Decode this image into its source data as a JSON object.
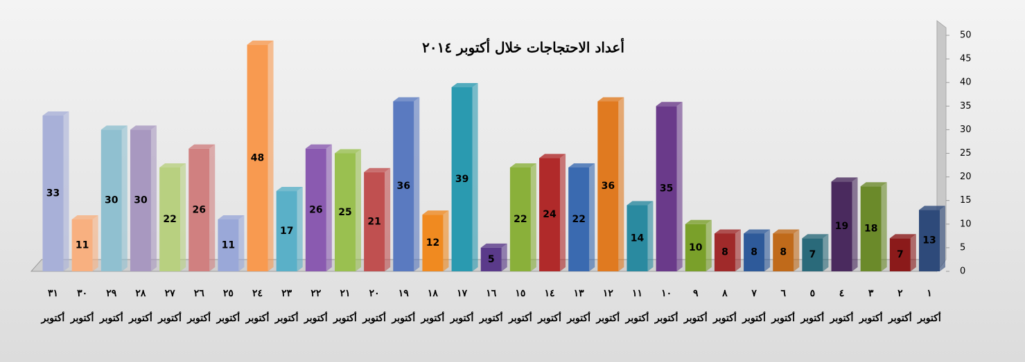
{
  "chart_data": {
    "type": "bar3d",
    "title": "أعداد الاحتجاجات خلال أكتوبر ٢٠١٤",
    "categories": [
      "١ أكتوبر",
      "٢ أكتوبر",
      "٣ أكتوبر",
      "٤ أكتوبر",
      "٥ أكتوبر",
      "٦ أكتوبر",
      "٧ أكتوبر",
      "٨ أكتوبر",
      "٩ أكتوبر",
      "١٠ أكتوبر",
      "١١ أكتوبر",
      "١٢ أكتوبر",
      "١٣ أكتوبر",
      "١٤ أكتوبر",
      "١٥ أكتوبر",
      "١٦ أكتوبر",
      "١٧ أكتوبر",
      "١٨ أكتوبر",
      "١٩ أكتوبر",
      "٢٠ أكتوبر",
      "٢١ أكتوبر",
      "٢٢ أكتوبر",
      "٢٣ أكتوبر",
      "٢٤ أكتوبر",
      "٢٥ أكتوبر",
      "٢٦ أكتوبر",
      "٢٧ أكتوبر",
      "٢٨ أكتوبر",
      "٢٩ أكتوبر",
      "٣٠ أكتوبر",
      "٣١ أكتوبر"
    ],
    "values": [
      13,
      7,
      18,
      19,
      7,
      8,
      8,
      8,
      10,
      35,
      14,
      36,
      22,
      24,
      22,
      5,
      39,
      12,
      36,
      21,
      25,
      26,
      17,
      48,
      11,
      26,
      22,
      30,
      30,
      11,
      33
    ],
    "colors": [
      "#2e4a7a",
      "#8b1a1a",
      "#6b8a2a",
      "#4a2a5e",
      "#2a6a7a",
      "#c06a1a",
      "#2e5a9a",
      "#a02a2a",
      "#7aa02a",
      "#6a3a8a",
      "#2a8aa0",
      "#e07a20",
      "#3a6ab0",
      "#b02a2a",
      "#8ab03a",
      "#5a3a8a",
      "#2a9ab0",
      "#f08a20",
      "#5a7ac0",
      "#c05050",
      "#9ac050",
      "#8a5ab0",
      "#5ab0c8",
      "#f89a50",
      "#9aa8d8",
      "#d08080",
      "#b8d080",
      "#a898c0",
      "#90c0d0",
      "#f8b080",
      "#a8b0d8"
    ],
    "ylim": [
      0,
      50
    ],
    "yticks": [
      0,
      5,
      10,
      15,
      20,
      25,
      30,
      35,
      40,
      45,
      50
    ],
    "grid": false
  }
}
